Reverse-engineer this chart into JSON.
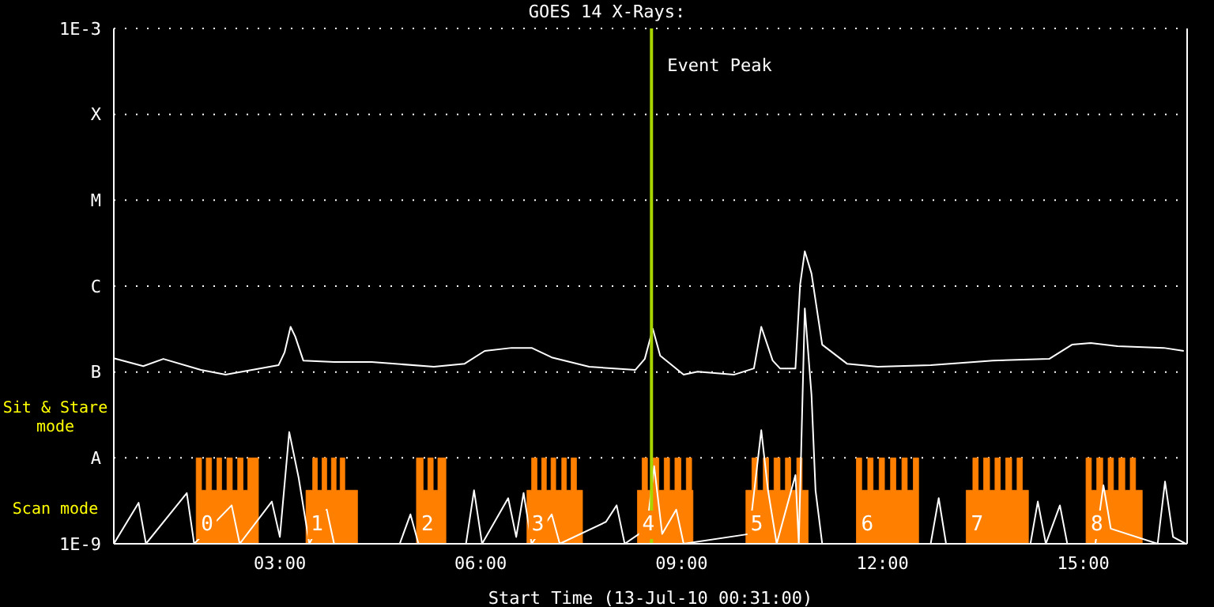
{
  "chart_data": {
    "type": "line",
    "title": "GOES 14 X-Rays:",
    "xlabel": "Start Time (13-Jul-10 00:31:00)",
    "log": "y",
    "grid": "y",
    "xlim": [
      0.52,
      16.55
    ],
    "xticks": [
      {
        "value": 3,
        "label": "03:00"
      },
      {
        "value": 6,
        "label": "06:00"
      },
      {
        "value": 9,
        "label": "09:00"
      },
      {
        "value": 12,
        "label": "12:00"
      },
      {
        "value": 15,
        "label": "15:00"
      }
    ],
    "ylim": [
      1e-09,
      0.001
    ],
    "yticks": [
      {
        "value": 1e-09,
        "label": "1E-9"
      },
      {
        "value": 1e-08,
        "label": "A"
      },
      {
        "value": 1e-07,
        "label": "B"
      },
      {
        "value": 1e-06,
        "label": "C"
      },
      {
        "value": 1e-05,
        "label": "M"
      },
      {
        "value": 0.0001,
        "label": "X"
      },
      {
        "value": 0.001,
        "label": "1E-3"
      }
    ],
    "series": [
      {
        "color": "#ffffff",
        "x": [
          0.53,
          0.96,
          1.26,
          1.82,
          2.19,
          2.98,
          3.07,
          3.16,
          3.23,
          3.35,
          3.81,
          4.37,
          5.3,
          5.76,
          6.06,
          6.46,
          6.76,
          7.06,
          7.62,
          8.31,
          8.45,
          8.57,
          8.68,
          9.03,
          9.24,
          9.78,
          10.08,
          10.19,
          10.36,
          10.47,
          10.7,
          10.77,
          10.84,
          10.94,
          11.1,
          11.47,
          11.93,
          12.72,
          13.65,
          14.49,
          14.83,
          15.11,
          15.51,
          16.2,
          16.5
        ],
        "values": [
          1.44e-07,
          1.17e-07,
          1.42e-07,
          1.06e-07,
          9.3e-08,
          1.2e-07,
          1.69e-07,
          3.36e-07,
          2.58e-07,
          1.36e-07,
          1.31e-07,
          1.31e-07,
          1.15e-07,
          1.25e-07,
          1.76e-07,
          1.91e-07,
          1.91e-07,
          1.48e-07,
          1.15e-07,
          1.06e-07,
          1.42e-07,
          3.18e-07,
          1.55e-07,
          9.3e-08,
          1.01e-07,
          9.3e-08,
          1.1e-07,
          3.36e-07,
          1.36e-07,
          1.1e-07,
          1.1e-07,
          1.04e-06,
          2.54e-06,
          1.4e-06,
          2.08e-07,
          1.25e-07,
          1.15e-07,
          1.2e-07,
          1.36e-07,
          1.42e-07,
          2.08e-07,
          2.17e-07,
          2e-07,
          1.91e-07,
          1.76e-07
        ]
      },
      {
        "color": "#ffffff",
        "x": [
          0.52,
          0.89,
          1.0,
          1.61,
          1.72,
          2.28,
          2.4,
          2.88,
          3.0,
          3.14,
          3.28,
          3.44,
          3.7,
          3.81,
          4.79,
          4.95,
          5.07,
          5.78,
          5.9,
          6.02,
          6.41,
          6.53,
          6.64,
          6.76,
          7.06,
          7.18,
          7.87,
          8.03,
          8.15,
          8.48,
          8.59,
          8.71,
          8.92,
          9.03,
          10.01,
          10.19,
          10.29,
          10.42,
          10.7,
          10.75,
          10.84,
          10.94,
          11.0,
          11.1,
          12.72,
          12.84,
          12.95,
          14.21,
          14.32,
          14.44,
          14.65,
          14.76,
          15.18,
          15.3,
          15.41,
          16.11,
          16.22,
          16.34,
          16.53
        ],
        "values": [
          1e-09,
          3e-09,
          1e-09,
          3.9e-09,
          1e-09,
          2.8e-09,
          1e-09,
          3.1e-09,
          1.2e-09,
          2e-08,
          5.9e-09,
          1e-09,
          2.5e-09,
          1e-09,
          1e-09,
          2.2e-09,
          1e-09,
          1e-09,
          4.2e-09,
          1e-09,
          3.4e-09,
          1.2e-09,
          3.9e-09,
          1e-09,
          2.2e-09,
          1e-09,
          1.8e-09,
          2.8e-09,
          1e-09,
          1.5e-09,
          8e-09,
          1.3e-09,
          2.5e-09,
          1e-09,
          1.3e-09,
          2.1e-08,
          4.2e-09,
          1e-09,
          6.3e-09,
          1e-09,
          5.5e-07,
          5.4e-08,
          4.2e-09,
          1e-09,
          1e-09,
          3.4e-09,
          1e-09,
          1e-09,
          3.1e-09,
          1e-09,
          2.8e-09,
          1e-09,
          1e-09,
          4.8e-09,
          1.5e-09,
          1e-09,
          5.3e-09,
          1.2e-09,
          1e-09
        ]
      },
      {
        "type": "area",
        "color": "#ff8000",
        "x": [
          0.52,
          1.75,
          1.83,
          1.9,
          1.98,
          2.06,
          2.13,
          2.21,
          2.29,
          2.37,
          2.45,
          2.52,
          2.68,
          3.39,
          3.49,
          3.56,
          3.63,
          3.7,
          3.77,
          3.84,
          3.9,
          3.97,
          4.16,
          5.04,
          5.14,
          5.21,
          5.29,
          5.36,
          5.48,
          6.69,
          6.76,
          6.84,
          6.91,
          6.98,
          7.05,
          7.12,
          7.21,
          7.28,
          7.35,
          7.43,
          7.52,
          8.34,
          8.41,
          8.49,
          8.57,
          8.66,
          8.74,
          8.82,
          8.9,
          8.99,
          9.07,
          9.15,
          9.17,
          9.96,
          10.05,
          10.13,
          10.22,
          10.3,
          10.38,
          10.47,
          10.55,
          10.63,
          10.72,
          10.8,
          10.89,
          11.61,
          11.69,
          11.78,
          11.86,
          11.95,
          12.03,
          12.12,
          12.2,
          12.29,
          12.37,
          12.46,
          12.54,
          13.25,
          13.35,
          13.43,
          13.51,
          13.6,
          13.68,
          13.76,
          13.84,
          13.93,
          14.01,
          14.09,
          14.18,
          15.04,
          15.12,
          15.2,
          15.29,
          15.37,
          15.45,
          15.53,
          15.62,
          15.7,
          15.78,
          15.88
        ],
        "values": [
          1e-09,
          1e-08,
          4.2e-09,
          1e-08,
          4.2e-09,
          1e-08,
          4.2e-09,
          1e-08,
          4.2e-09,
          1e-08,
          4.2e-09,
          1e-08,
          1e-09,
          4.2e-09,
          1e-08,
          4.2e-09,
          1e-08,
          4.2e-09,
          1e-08,
          4.2e-09,
          1e-08,
          4.2e-09,
          1e-09,
          1e-08,
          4.2e-09,
          1e-08,
          4.2e-09,
          1e-08,
          1e-09,
          4.2e-09,
          1e-08,
          4.2e-09,
          1e-08,
          4.2e-09,
          1e-08,
          4.2e-09,
          1e-08,
          4.2e-09,
          1e-08,
          4.2e-09,
          1e-09,
          4.2e-09,
          1e-08,
          4.2e-09,
          1e-08,
          4.2e-09,
          1e-08,
          4.2e-09,
          1e-08,
          4.2e-09,
          1e-08,
          4.2e-09,
          1e-09,
          4.2e-09,
          1e-08,
          4.2e-09,
          1e-08,
          4.2e-09,
          1e-08,
          4.2e-09,
          1e-08,
          4.2e-09,
          1e-08,
          4.2e-09,
          1e-09,
          1e-08,
          4.2e-09,
          1e-08,
          4.2e-09,
          1e-08,
          4.2e-09,
          1e-08,
          4.2e-09,
          1e-08,
          4.2e-09,
          1e-08,
          1e-09,
          4.2e-09,
          1e-08,
          4.2e-09,
          1e-08,
          4.2e-09,
          1e-08,
          4.2e-09,
          1e-08,
          4.2e-09,
          1e-08,
          4.2e-09,
          1e-09,
          1e-08,
          4.2e-09,
          1e-08,
          4.2e-09,
          1e-08,
          4.2e-09,
          1e-08,
          4.2e-09,
          1e-08,
          4.2e-09,
          1e-09
        ]
      }
    ],
    "ref_lines": [
      {
        "axis": "x",
        "value": 8.55,
        "label": "Event Peak",
        "color": "#a8d400"
      }
    ],
    "annotations": [
      "0",
      "1",
      "2",
      "3",
      "4",
      "5",
      "6",
      "7",
      "8",
      "Sit & Stare mode",
      "Scan mode"
    ]
  }
}
